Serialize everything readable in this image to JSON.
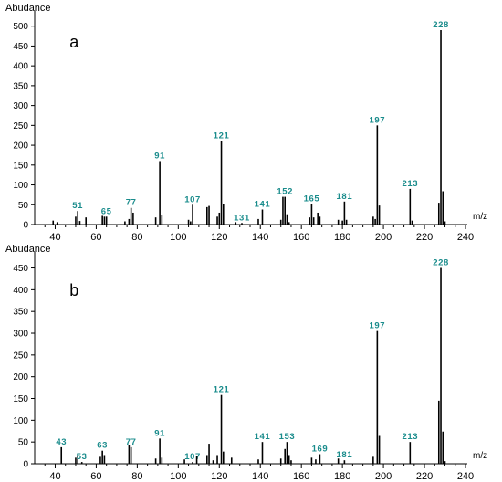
{
  "chart_data": [
    {
      "type": "bar",
      "panel_label": "a",
      "ylabel": "Abudance",
      "xlabel": "m/z",
      "xlim": [
        30,
        240
      ],
      "ylim": [
        0,
        520
      ],
      "xticks": [
        40,
        60,
        80,
        100,
        120,
        140,
        160,
        180,
        200,
        220,
        240
      ],
      "yticks": [
        0,
        50,
        100,
        150,
        200,
        250,
        300,
        350,
        400,
        450,
        500
      ],
      "peak_color": "#000000",
      "label_color": "#1a8c8c",
      "peaks": [
        {
          "mz": 39,
          "ab": 10
        },
        {
          "mz": 41,
          "ab": 6
        },
        {
          "mz": 50,
          "ab": 20
        },
        {
          "mz": 51,
          "ab": 34,
          "label": "51"
        },
        {
          "mz": 52,
          "ab": 9
        },
        {
          "mz": 55,
          "ab": 18
        },
        {
          "mz": 63,
          "ab": 22
        },
        {
          "mz": 64,
          "ab": 20
        },
        {
          "mz": 65,
          "ab": 20,
          "label": "65"
        },
        {
          "mz": 74,
          "ab": 8
        },
        {
          "mz": 76,
          "ab": 14
        },
        {
          "mz": 77,
          "ab": 42,
          "label": "77"
        },
        {
          "mz": 78,
          "ab": 30
        },
        {
          "mz": 89,
          "ab": 18
        },
        {
          "mz": 91,
          "ab": 160,
          "label": "91"
        },
        {
          "mz": 92,
          "ab": 24
        },
        {
          "mz": 105,
          "ab": 12
        },
        {
          "mz": 106,
          "ab": 8
        },
        {
          "mz": 107,
          "ab": 50,
          "label": "107"
        },
        {
          "mz": 114,
          "ab": 44
        },
        {
          "mz": 115,
          "ab": 47
        },
        {
          "mz": 119,
          "ab": 20
        },
        {
          "mz": 120,
          "ab": 30
        },
        {
          "mz": 121,
          "ab": 210,
          "label": "121"
        },
        {
          "mz": 122,
          "ab": 52
        },
        {
          "mz": 128,
          "ab": 6
        },
        {
          "mz": 131,
          "ab": 4,
          "label": "131"
        },
        {
          "mz": 139,
          "ab": 14
        },
        {
          "mz": 141,
          "ab": 38,
          "label": "141"
        },
        {
          "mz": 150,
          "ab": 12
        },
        {
          "mz": 151,
          "ab": 70
        },
        {
          "mz": 152,
          "ab": 70,
          "label": "152"
        },
        {
          "mz": 153,
          "ab": 26
        },
        {
          "mz": 154,
          "ab": 6
        },
        {
          "mz": 164,
          "ab": 18
        },
        {
          "mz": 165,
          "ab": 52,
          "label": "165"
        },
        {
          "mz": 166,
          "ab": 18
        },
        {
          "mz": 168,
          "ab": 30
        },
        {
          "mz": 169,
          "ab": 20
        },
        {
          "mz": 178,
          "ab": 12
        },
        {
          "mz": 180,
          "ab": 10
        },
        {
          "mz": 181,
          "ab": 58,
          "label": "181"
        },
        {
          "mz": 182,
          "ab": 12
        },
        {
          "mz": 195,
          "ab": 20
        },
        {
          "mz": 196,
          "ab": 14
        },
        {
          "mz": 197,
          "ab": 250,
          "label": "197"
        },
        {
          "mz": 198,
          "ab": 48
        },
        {
          "mz": 213,
          "ab": 90,
          "label": "213"
        },
        {
          "mz": 214,
          "ab": 10
        },
        {
          "mz": 227,
          "ab": 55
        },
        {
          "mz": 228,
          "ab": 490,
          "label": "228"
        },
        {
          "mz": 229,
          "ab": 84
        },
        {
          "mz": 230,
          "ab": 8
        }
      ]
    },
    {
      "type": "bar",
      "panel_label": "b",
      "ylabel": "Abudance",
      "xlabel": "m/z",
      "xlim": [
        30,
        240
      ],
      "ylim": [
        0,
        470
      ],
      "xticks": [
        40,
        60,
        80,
        100,
        120,
        140,
        160,
        180,
        200,
        220,
        240
      ],
      "yticks": [
        0,
        50,
        100,
        150,
        200,
        250,
        300,
        350,
        400,
        450
      ],
      "peak_color": "#000000",
      "label_color": "#1a8c8c",
      "peaks": [
        {
          "mz": 43,
          "ab": 38,
          "label": "43"
        },
        {
          "mz": 50,
          "ab": 14
        },
        {
          "mz": 51,
          "ab": 24
        },
        {
          "mz": 53,
          "ab": 4,
          "label": "53"
        },
        {
          "mz": 62,
          "ab": 16
        },
        {
          "mz": 63,
          "ab": 30,
          "label": "63"
        },
        {
          "mz": 64,
          "ab": 20
        },
        {
          "mz": 76,
          "ab": 42
        },
        {
          "mz": 77,
          "ab": 38,
          "label": "77"
        },
        {
          "mz": 89,
          "ab": 12
        },
        {
          "mz": 91,
          "ab": 58,
          "label": "91"
        },
        {
          "mz": 92,
          "ab": 14
        },
        {
          "mz": 103,
          "ab": 10
        },
        {
          "mz": 107,
          "ab": 4,
          "label": "107"
        },
        {
          "mz": 109,
          "ab": 18
        },
        {
          "mz": 114,
          "ab": 20
        },
        {
          "mz": 115,
          "ab": 46
        },
        {
          "mz": 117,
          "ab": 8
        },
        {
          "mz": 119,
          "ab": 20
        },
        {
          "mz": 121,
          "ab": 158,
          "label": "121"
        },
        {
          "mz": 122,
          "ab": 28
        },
        {
          "mz": 126,
          "ab": 14
        },
        {
          "mz": 139,
          "ab": 10
        },
        {
          "mz": 141,
          "ab": 50,
          "label": "141"
        },
        {
          "mz": 150,
          "ab": 12
        },
        {
          "mz": 152,
          "ab": 34
        },
        {
          "mz": 153,
          "ab": 50,
          "label": "153"
        },
        {
          "mz": 154,
          "ab": 20
        },
        {
          "mz": 155,
          "ab": 8
        },
        {
          "mz": 165,
          "ab": 14
        },
        {
          "mz": 167,
          "ab": 10
        },
        {
          "mz": 169,
          "ab": 22,
          "label": "169"
        },
        {
          "mz": 178,
          "ab": 12
        },
        {
          "mz": 181,
          "ab": 8,
          "label": "181"
        },
        {
          "mz": 195,
          "ab": 16
        },
        {
          "mz": 197,
          "ab": 305,
          "label": "197"
        },
        {
          "mz": 198,
          "ab": 64
        },
        {
          "mz": 213,
          "ab": 50,
          "label": "213"
        },
        {
          "mz": 227,
          "ab": 145
        },
        {
          "mz": 228,
          "ab": 450,
          "label": "228"
        },
        {
          "mz": 229,
          "ab": 74
        },
        {
          "mz": 230,
          "ab": 6
        }
      ]
    }
  ]
}
